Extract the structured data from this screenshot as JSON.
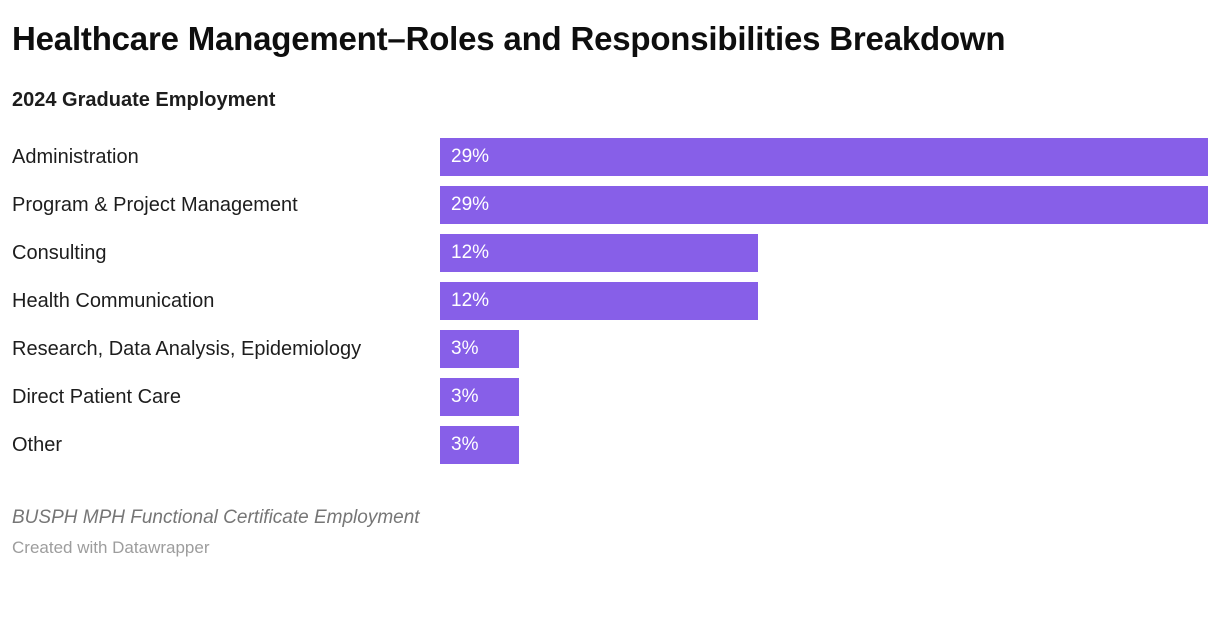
{
  "header": {
    "title": "Healthcare Management–Roles and Responsibilities Breakdown",
    "subtitle": "2024 Graduate Employment"
  },
  "footer": {
    "notes": "BUSPH MPH Functional Certificate Employment",
    "credit": "Created with Datawrapper"
  },
  "colors": {
    "bar": "#875FE8",
    "bar_label": "#FFFFFF",
    "title": "#0E0E0E",
    "notes": "#767676",
    "credit": "#9D9D9D"
  },
  "chart_data": {
    "type": "bar",
    "orientation": "horizontal",
    "title": "Healthcare Management–Roles and Responsibilities Breakdown",
    "subtitle": "2024 Graduate Employment",
    "categories": [
      "Administration",
      "Program & Project Management",
      "Consulting",
      "Health Communication",
      "Research, Data Analysis, Epidemiology",
      "Direct Patient Care",
      "Other"
    ],
    "values": [
      29,
      29,
      12,
      12,
      3,
      3,
      3
    ],
    "value_labels": [
      "29%",
      "29%",
      "12%",
      "12%",
      "3%",
      "3%",
      "3%"
    ],
    "value_unit": "%",
    "xlabel": "",
    "ylabel": "",
    "xlim": [
      0,
      29
    ],
    "grid": false,
    "legend": false,
    "value_labels_position": "inside-start",
    "notes": "BUSPH MPH Functional Certificate Employment",
    "credit": "Created with Datawrapper"
  }
}
